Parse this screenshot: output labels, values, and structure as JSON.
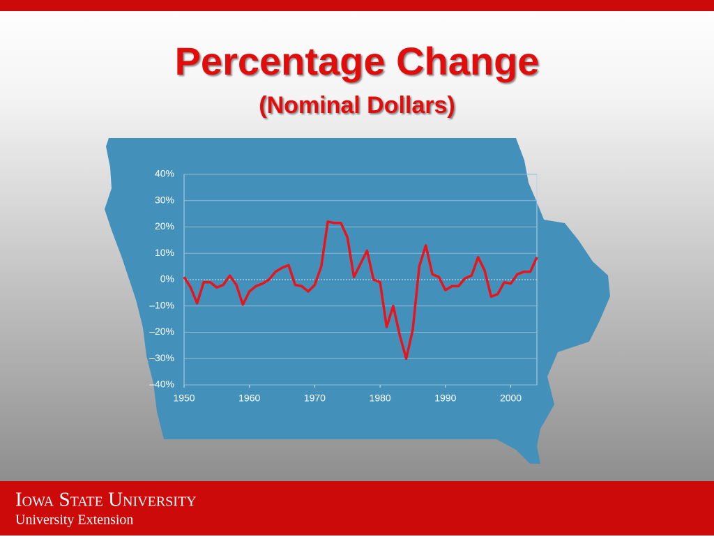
{
  "header": {
    "title": "Percentage Change",
    "subtitle": "(Nominal Dollars)"
  },
  "chart_data": {
    "type": "line",
    "x": [
      1950,
      1951,
      1952,
      1953,
      1954,
      1955,
      1956,
      1957,
      1958,
      1959,
      1960,
      1961,
      1962,
      1963,
      1964,
      1965,
      1966,
      1967,
      1968,
      1969,
      1970,
      1971,
      1972,
      1973,
      1974,
      1975,
      1976,
      1977,
      1978,
      1979,
      1980,
      1981,
      1982,
      1983,
      1984,
      1985,
      1986,
      1987,
      1988,
      1989,
      1990,
      1991,
      1992,
      1993,
      1994,
      1995,
      1996,
      1997,
      1998,
      1999,
      2000,
      2001,
      2002,
      2003,
      2004
    ],
    "series": [
      {
        "color": "#e8141c",
        "values": [
          1,
          -3,
          -9,
          -1,
          -1,
          -3,
          -2,
          1.5,
          -2,
          -9.5,
          -4.5,
          -2.5,
          -1.5,
          0,
          3,
          4.5,
          5.5,
          -2,
          -2.5,
          -4.5,
          -2,
          5,
          22,
          21.5,
          21.5,
          16,
          1,
          6,
          11,
          0,
          -1,
          -18,
          -10,
          -21,
          -30,
          -19,
          5,
          13,
          2,
          1,
          -4,
          -2.5,
          -2.5,
          0.5,
          1.5,
          8.5,
          3.5,
          -6.5,
          -5.5,
          -1,
          -1.5,
          2,
          3,
          3,
          8.5
        ]
      }
    ],
    "xlim": [
      1950,
      2004
    ],
    "xticks": [
      1950,
      1960,
      1970,
      1980,
      1990,
      2000
    ],
    "ylim": [
      -40,
      40
    ],
    "yticks": [
      {
        "value": -40,
        "label": "–40%"
      },
      {
        "value": -30,
        "label": "–30%"
      },
      {
        "value": -20,
        "label": "–20%"
      },
      {
        "value": -10,
        "label": "–10%"
      },
      {
        "value": 0,
        "label": "0%"
      },
      {
        "value": 10,
        "label": "10%"
      },
      {
        "value": 20,
        "label": "20%"
      },
      {
        "value": 30,
        "label": "30%"
      },
      {
        "value": 40,
        "label": "40%"
      }
    ],
    "grid": true
  },
  "footer": {
    "university": "Iowa State University",
    "unit": "University Extension"
  }
}
